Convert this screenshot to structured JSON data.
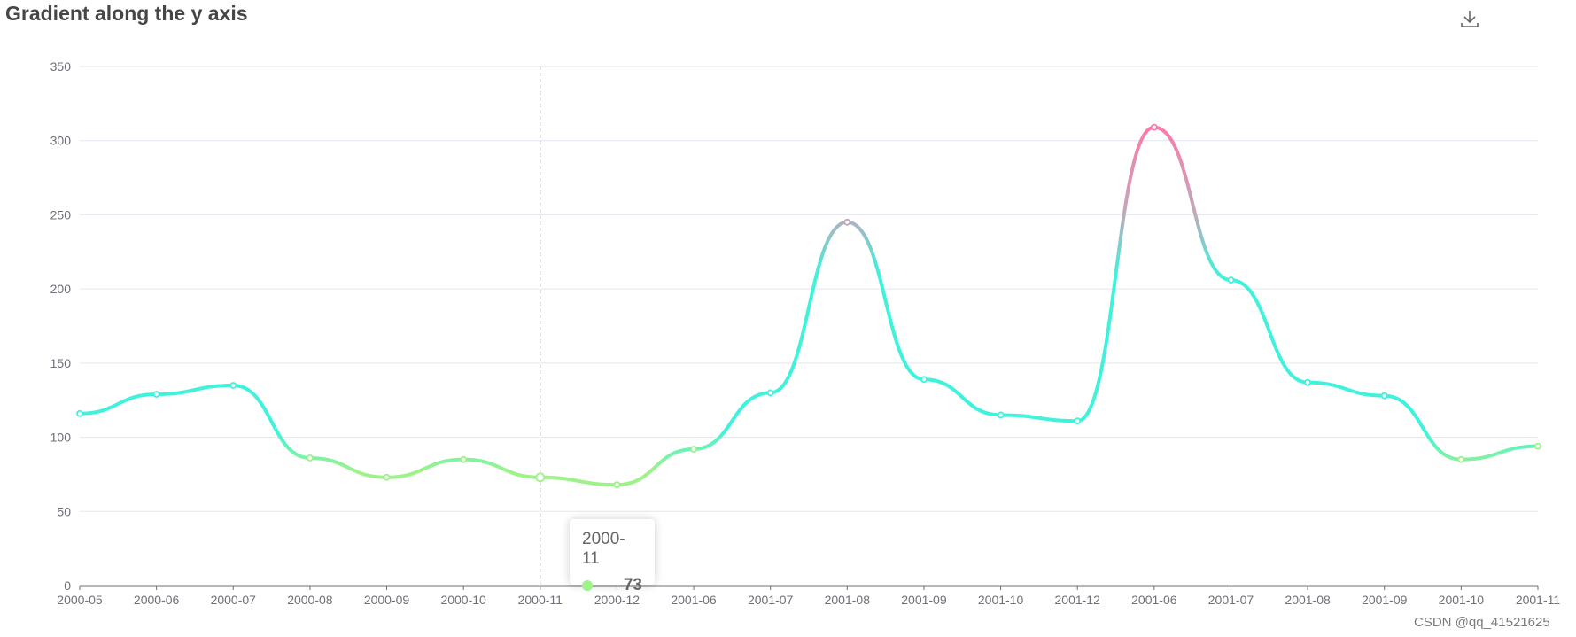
{
  "chart_data": {
    "type": "line",
    "title": "Gradient along the y axis",
    "categories": [
      "2000-05",
      "2000-06",
      "2000-07",
      "2000-08",
      "2000-09",
      "2000-10",
      "2000-11",
      "2000-12",
      "2001-06",
      "2001-07",
      "2001-08",
      "2001-09",
      "2001-10",
      "2001-12",
      "2001-06",
      "2001-07",
      "2001-08",
      "2001-09",
      "2001-10",
      "2001-11"
    ],
    "values": [
      116,
      129,
      135,
      86,
      73,
      85,
      73,
      68,
      92,
      130,
      245,
      139,
      115,
      111,
      309,
      206,
      137,
      128,
      85,
      94
    ],
    "ylim": [
      0,
      350
    ],
    "yticks": [
      0,
      50,
      100,
      150,
      200,
      250,
      300,
      350
    ],
    "grid": true,
    "smooth": true,
    "gradient_colors": {
      "low": "#9df28a",
      "mid": "#3ff2dc",
      "high": "#fb7bab"
    }
  },
  "tooltip": {
    "category": "2000-11",
    "value": "73",
    "dot_color": "#9df28a"
  },
  "watermark": "CSDN @qq_41521625"
}
